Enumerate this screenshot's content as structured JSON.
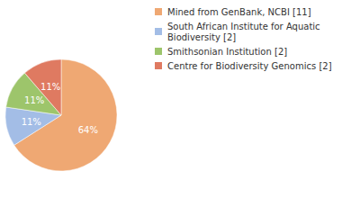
{
  "chart_data": {
    "type": "pie",
    "categories": [
      "Mined from GenBank, NCBI [11]",
      "South African Institute for Aquatic Biodiversity [2]",
      "Smithsonian Institution [2]",
      "Centre for Biodiversity Genomics [2]"
    ],
    "values": [
      64,
      11,
      11,
      11
    ],
    "value_labels": [
      "64%",
      "11%",
      "11%",
      "11%"
    ],
    "colors": [
      "#efa873",
      "#a3bde6",
      "#9dc56b",
      "#df7a61"
    ],
    "data_labels": true,
    "legend": "upper right"
  }
}
